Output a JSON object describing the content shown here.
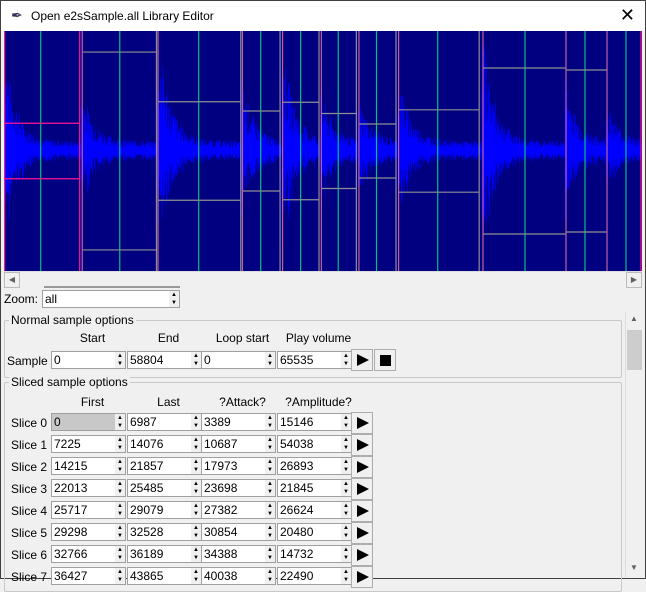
{
  "window": {
    "title": "Open e2sSample.all Library Editor",
    "icon": "feather-icon"
  },
  "waveform": {
    "background": "#000080",
    "wave_color": "#0000ff",
    "slice_color": "#ff1493",
    "attack_color": "#00c080",
    "amplitude_color": "#909090",
    "total_length": 58804
  },
  "zoom": {
    "label": "Zoom:",
    "value": "all"
  },
  "normal": {
    "legend": "Normal sample options",
    "headers": [
      "Start",
      "End",
      "Loop start",
      "Play volume"
    ],
    "row_label": "Sample",
    "values": [
      "0",
      "58804",
      "0",
      "65535"
    ]
  },
  "sliced": {
    "legend": "Sliced sample options",
    "headers": [
      "First",
      "Last",
      "?Attack?",
      "?Amplitude?"
    ],
    "slices": [
      {
        "label": "Slice 0",
        "values": [
          "0",
          "6987",
          "3389",
          "15146"
        ]
      },
      {
        "label": "Slice 1",
        "values": [
          "7225",
          "14076",
          "10687",
          "54038"
        ]
      },
      {
        "label": "Slice 2",
        "values": [
          "14215",
          "21857",
          "17973",
          "26893"
        ]
      },
      {
        "label": "Slice 3",
        "values": [
          "22013",
          "25485",
          "23698",
          "21845"
        ]
      },
      {
        "label": "Slice 4",
        "values": [
          "25717",
          "29079",
          "27382",
          "26624"
        ]
      },
      {
        "label": "Slice 5",
        "values": [
          "29298",
          "32528",
          "30854",
          "20480"
        ]
      },
      {
        "label": "Slice 6",
        "values": [
          "32766",
          "36189",
          "34388",
          "14732"
        ]
      },
      {
        "label": "Slice 7",
        "values": [
          "36427",
          "43865",
          "40038",
          "22490"
        ]
      }
    ]
  }
}
